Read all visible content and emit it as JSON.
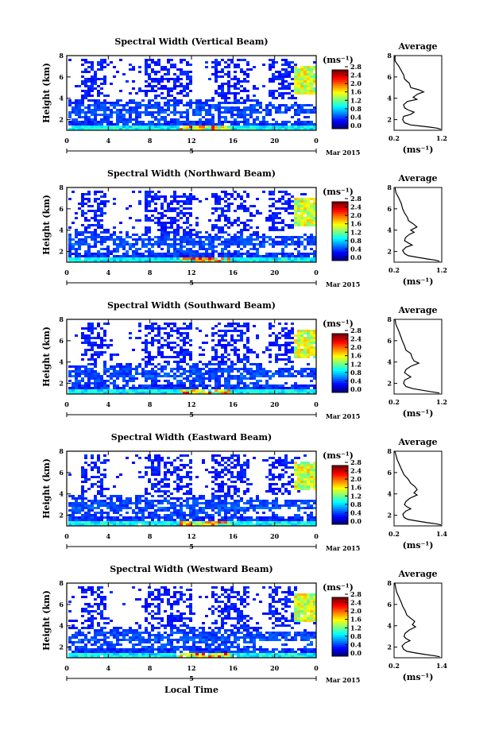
{
  "chart_data": [
    {
      "type": "heatmap",
      "title": "Spectral Width (Vertical Beam)",
      "ylabel": "Height (km)",
      "yticks": [
        "2",
        "4",
        "6",
        "8"
      ],
      "xticks": [
        "0",
        "4",
        "8",
        "12",
        "16",
        "20",
        "0"
      ],
      "day_label": "5",
      "date_label": "Mar 2015",
      "colorbar": {
        "unit": "(ms⁻¹)",
        "ticks": [
          "0.0",
          "0.4",
          "0.8",
          "1.2",
          "1.6",
          "2.0",
          "2.4",
          "2.8"
        ]
      },
      "profile": {
        "title": "Average",
        "xlabel": "(ms⁻¹)",
        "xticks": [
          "0.2",
          "1.2"
        ],
        "yticks": [
          "2",
          "4",
          "6",
          "8"
        ],
        "xlim": [
          0.2,
          1.2
        ],
        "ylim": [
          1,
          8
        ],
        "points": [
          [
            1.18,
            1.1
          ],
          [
            1.1,
            1.2
          ],
          [
            0.95,
            1.3
          ],
          [
            0.75,
            1.4
          ],
          [
            0.55,
            1.5
          ],
          [
            0.42,
            1.7
          ],
          [
            0.38,
            2.0
          ],
          [
            0.4,
            2.3
          ],
          [
            0.55,
            2.5
          ],
          [
            0.62,
            2.7
          ],
          [
            0.5,
            2.9
          ],
          [
            0.42,
            3.1
          ],
          [
            0.4,
            3.4
          ],
          [
            0.48,
            3.7
          ],
          [
            0.68,
            3.9
          ],
          [
            0.6,
            4.1
          ],
          [
            0.7,
            4.4
          ],
          [
            0.82,
            4.6
          ],
          [
            0.72,
            4.8
          ],
          [
            0.55,
            5.0
          ],
          [
            0.52,
            5.4
          ],
          [
            0.42,
            5.8
          ],
          [
            0.4,
            6.2
          ],
          [
            0.35,
            6.6
          ],
          [
            0.3,
            7.0
          ],
          [
            0.22,
            7.5
          ],
          [
            0.22,
            8.0
          ]
        ]
      }
    },
    {
      "type": "heatmap",
      "title": "Spectral Width (Northward Beam)",
      "ylabel": "Height (km)",
      "yticks": [
        "2",
        "4",
        "6",
        "8"
      ],
      "xticks": [
        "0",
        "4",
        "8",
        "12",
        "16",
        "20",
        "0"
      ],
      "day_label": "5",
      "date_label": "Mar 2015",
      "colorbar": {
        "unit": "(ms⁻¹)",
        "ticks": [
          "0.0",
          "0.4",
          "0.8",
          "1.2",
          "1.6",
          "2.0",
          "2.4",
          "2.8"
        ]
      },
      "profile": {
        "title": "Average",
        "xlabel": "(ms⁻¹)",
        "xticks": [
          "0.2",
          "1.2"
        ],
        "yticks": [
          "2",
          "4",
          "6",
          "8"
        ],
        "xlim": [
          0.2,
          1.2
        ],
        "ylim": [
          1,
          8
        ],
        "points": [
          [
            1.15,
            1.1
          ],
          [
            1.05,
            1.2
          ],
          [
            0.9,
            1.3
          ],
          [
            0.7,
            1.45
          ],
          [
            0.5,
            1.6
          ],
          [
            0.42,
            1.8
          ],
          [
            0.38,
            2.1
          ],
          [
            0.45,
            2.4
          ],
          [
            0.58,
            2.6
          ],
          [
            0.5,
            2.8
          ],
          [
            0.42,
            3.0
          ],
          [
            0.44,
            3.3
          ],
          [
            0.52,
            3.6
          ],
          [
            0.62,
            3.8
          ],
          [
            0.55,
            4.0
          ],
          [
            0.68,
            4.3
          ],
          [
            0.6,
            4.6
          ],
          [
            0.5,
            4.9
          ],
          [
            0.48,
            5.2
          ],
          [
            0.42,
            5.6
          ],
          [
            0.38,
            6.0
          ],
          [
            0.35,
            6.5
          ],
          [
            0.3,
            7.0
          ],
          [
            0.24,
            7.5
          ],
          [
            0.22,
            8.0
          ]
        ]
      }
    },
    {
      "type": "heatmap",
      "title": "Spectral Width (Southward Beam)",
      "ylabel": "Height (km)",
      "yticks": [
        "2",
        "4",
        "6",
        "8"
      ],
      "xticks": [
        "0",
        "4",
        "8",
        "12",
        "16",
        "20",
        "0"
      ],
      "day_label": "5",
      "date_label": "Mar 2015",
      "colorbar": {
        "unit": "(ms⁻¹)",
        "ticks": [
          "0.0",
          "0.4",
          "0.8",
          "1.2",
          "1.6",
          "2.0",
          "2.4",
          "2.8"
        ]
      },
      "profile": {
        "title": "Average",
        "xlabel": "(ms⁻¹)",
        "xticks": [
          "0.2",
          "1.2"
        ],
        "yticks": [
          "2",
          "4",
          "6",
          "8"
        ],
        "xlim": [
          0.2,
          1.2
        ],
        "ylim": [
          1,
          8
        ],
        "points": [
          [
            1.15,
            1.1
          ],
          [
            1.0,
            1.2
          ],
          [
            0.8,
            1.35
          ],
          [
            0.6,
            1.5
          ],
          [
            0.45,
            1.7
          ],
          [
            0.4,
            2.0
          ],
          [
            0.42,
            2.3
          ],
          [
            0.55,
            2.6
          ],
          [
            0.48,
            2.8
          ],
          [
            0.42,
            3.0
          ],
          [
            0.45,
            3.3
          ],
          [
            0.55,
            3.6
          ],
          [
            0.72,
            3.9
          ],
          [
            0.62,
            4.1
          ],
          [
            0.58,
            4.4
          ],
          [
            0.55,
            4.8
          ],
          [
            0.45,
            5.1
          ],
          [
            0.42,
            5.5
          ],
          [
            0.38,
            5.9
          ],
          [
            0.34,
            6.4
          ],
          [
            0.3,
            6.9
          ],
          [
            0.24,
            7.5
          ],
          [
            0.22,
            8.0
          ]
        ]
      }
    },
    {
      "type": "heatmap",
      "title": "Spectral Width (Eastward Beam)",
      "ylabel": "Height (km)",
      "yticks": [
        "2",
        "4",
        "6",
        "8"
      ],
      "xticks": [
        "0",
        "4",
        "8",
        "12",
        "16",
        "20",
        "0"
      ],
      "day_label": "5",
      "date_label": "Mar 2015",
      "colorbar": {
        "unit": "(ms⁻¹)",
        "ticks": [
          "0.0",
          "0.4",
          "0.8",
          "1.2",
          "1.6",
          "2.0",
          "2.4",
          "2.8"
        ]
      },
      "profile": {
        "title": "Average",
        "xlabel": "(ms⁻¹)",
        "xticks": [
          "0.2",
          "1.4"
        ],
        "yticks": [
          "2",
          "4",
          "6",
          "8"
        ],
        "xlim": [
          0.2,
          1.4
        ],
        "ylim": [
          1,
          8
        ],
        "points": [
          [
            1.38,
            1.1
          ],
          [
            1.25,
            1.2
          ],
          [
            1.05,
            1.3
          ],
          [
            0.8,
            1.45
          ],
          [
            0.55,
            1.6
          ],
          [
            0.45,
            1.8
          ],
          [
            0.42,
            2.1
          ],
          [
            0.5,
            2.4
          ],
          [
            0.62,
            2.6
          ],
          [
            0.52,
            2.8
          ],
          [
            0.46,
            3.0
          ],
          [
            0.5,
            3.3
          ],
          [
            0.6,
            3.6
          ],
          [
            0.78,
            3.9
          ],
          [
            0.7,
            4.1
          ],
          [
            0.78,
            4.4
          ],
          [
            0.72,
            4.7
          ],
          [
            0.62,
            5.0
          ],
          [
            0.55,
            5.4
          ],
          [
            0.45,
            5.8
          ],
          [
            0.4,
            6.2
          ],
          [
            0.34,
            6.7
          ],
          [
            0.28,
            7.2
          ],
          [
            0.22,
            8.0
          ]
        ]
      }
    },
    {
      "type": "heatmap",
      "title": "Spectral Width (Westward Beam)",
      "ylabel": "Height (km)",
      "yticks": [
        "2",
        "4",
        "6",
        "8"
      ],
      "xticks": [
        "0",
        "4",
        "8",
        "12",
        "16",
        "20",
        "0"
      ],
      "day_label": "5",
      "date_label": "Mar 2015",
      "xlabel": "Local Time",
      "colorbar": {
        "unit": "(ms⁻¹)",
        "ticks": [
          "0.0",
          "0.4",
          "0.8",
          "1.2",
          "1.6",
          "2.0",
          "2.4",
          "2.8"
        ]
      },
      "profile": {
        "title": "Average",
        "xlabel": "(ms⁻¹)",
        "xticks": [
          "0.2",
          "1.4"
        ],
        "yticks": [
          "2",
          "4",
          "6",
          "8"
        ],
        "xlim": [
          0.2,
          1.4
        ],
        "ylim": [
          1,
          8
        ],
        "points": [
          [
            1.35,
            1.1
          ],
          [
            1.2,
            1.2
          ],
          [
            1.0,
            1.3
          ],
          [
            0.75,
            1.45
          ],
          [
            0.52,
            1.6
          ],
          [
            0.44,
            1.8
          ],
          [
            0.4,
            2.1
          ],
          [
            0.48,
            2.4
          ],
          [
            0.6,
            2.6
          ],
          [
            0.5,
            2.8
          ],
          [
            0.45,
            3.0
          ],
          [
            0.48,
            3.3
          ],
          [
            0.58,
            3.6
          ],
          [
            0.74,
            3.9
          ],
          [
            0.66,
            4.1
          ],
          [
            0.72,
            4.4
          ],
          [
            0.62,
            4.7
          ],
          [
            0.52,
            5.0
          ],
          [
            0.48,
            5.4
          ],
          [
            0.42,
            5.8
          ],
          [
            0.38,
            6.2
          ],
          [
            0.32,
            6.7
          ],
          [
            0.26,
            7.2
          ],
          [
            0.22,
            8.0
          ]
        ]
      }
    }
  ]
}
